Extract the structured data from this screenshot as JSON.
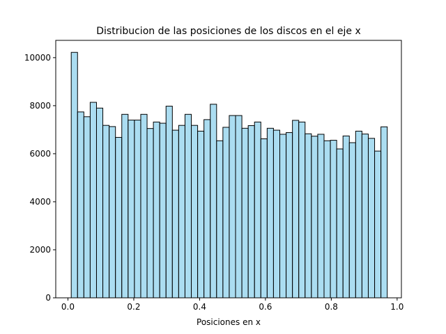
{
  "chart_data": {
    "type": "bar",
    "subtype": "histogram",
    "title": "Distribucion de las posiciones de los discos en el eje x",
    "xlabel": "Posiciones en x",
    "ylabel": "",
    "xlim": [
      -0.037,
      1.013
    ],
    "ylim": [
      0,
      10720
    ],
    "bin_start": 0.01,
    "bin_width": 0.0192,
    "values": [
      10220,
      7740,
      7540,
      8140,
      7900,
      7180,
      7130,
      6680,
      7640,
      7400,
      7400,
      7640,
      7050,
      7320,
      7270,
      7980,
      6980,
      7180,
      7640,
      7180,
      6940,
      7420,
      8060,
      6540,
      7100,
      7590,
      7590,
      7060,
      7170,
      7320,
      6620,
      7060,
      6980,
      6810,
      6880,
      7390,
      7320,
      6830,
      6730,
      6810,
      6540,
      6560,
      6200,
      6740,
      6460,
      6940,
      6820,
      6640,
      6110,
      7120
    ],
    "x_ticks": [
      {
        "value": 0.0,
        "label": "0.0"
      },
      {
        "value": 0.2,
        "label": "0.2"
      },
      {
        "value": 0.4,
        "label": "0.4"
      },
      {
        "value": 0.6,
        "label": "0.6"
      },
      {
        "value": 0.8,
        "label": "0.8"
      },
      {
        "value": 1.0,
        "label": "1.0"
      }
    ],
    "y_ticks": [
      {
        "value": 0,
        "label": "0"
      },
      {
        "value": 2000,
        "label": "2000"
      },
      {
        "value": 4000,
        "label": "4000"
      },
      {
        "value": 6000,
        "label": "6000"
      },
      {
        "value": 8000,
        "label": "8000"
      },
      {
        "value": 10000,
        "label": "10000"
      }
    ],
    "bar_color": "#87ceeb",
    "bar_alpha": 0.7,
    "edge_color": "#000000",
    "grid": false
  }
}
